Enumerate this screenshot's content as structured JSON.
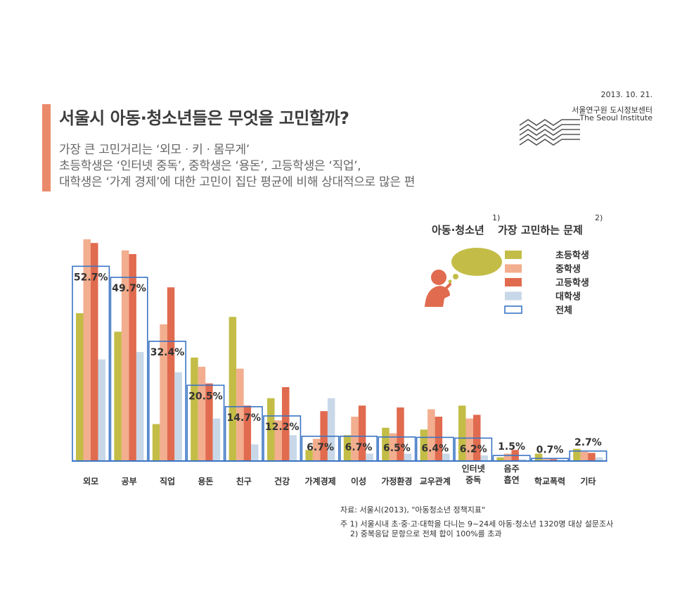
{
  "header": {
    "title": "서울시 아동·청소년들은 무엇을 고민할까?",
    "subtitle_lines": [
      "가장 큰 고민거리는 ‘외모 · 키 · 몸무게’",
      "초등학생은 ‘인터넷 중독’, 중학생은 ‘용돈’, 고등학생은 ‘직업’,",
      "대학생은 ‘가계 경제’에 대한 고민이 집단 평균에 비해 상대적으로 많은 편"
    ],
    "date": "2013. 10. 21.",
    "org": "서울연구원 도시정보센터",
    "org_en": "The Seoul Institute"
  },
  "chart_data": {
    "type": "bar",
    "title": "아동·청소년 가장 고민하는 문제",
    "title_part1": "아동·청소년",
    "title_part2": "가장 고민하는 문제",
    "note_marks": [
      "1)",
      "2)"
    ],
    "categories": [
      "외모",
      "공부",
      "직업",
      "용돈",
      "친구",
      "건강",
      "가계경제",
      "이성",
      "가정환경",
      "교우관계",
      "인터넷\n중독",
      "음주\n흡연",
      "학교폭력",
      "기타"
    ],
    "series": [
      {
        "name": "초등학생",
        "color": "#c3bd47",
        "values": [
          40.0,
          35.0,
          10.0,
          28.0,
          39.0,
          17.0,
          3.0,
          7.0,
          9.0,
          8.5,
          15.0,
          1.0,
          2.0,
          3.3
        ]
      },
      {
        "name": "중학생",
        "color": "#f2ae8e",
        "values": [
          60.0,
          57.0,
          37.0,
          25.5,
          25.0,
          11.0,
          6.0,
          12.0,
          7.5,
          14.0,
          11.5,
          2.0,
          0.5,
          2.5
        ]
      },
      {
        "name": "고등학생",
        "color": "#e16b4f",
        "values": [
          59.0,
          56.0,
          47.0,
          21.0,
          15.0,
          20.0,
          13.5,
          15.0,
          14.5,
          12.0,
          12.5,
          3.0,
          0.5,
          2.2
        ]
      },
      {
        "name": "대학생",
        "color": "#c8d8e8",
        "values": [
          27.5,
          29.5,
          24.0,
          11.5,
          4.5,
          7.0,
          17.0,
          2.0,
          2.0,
          2.0,
          1.5,
          0.5,
          0.3,
          1.0
        ]
      }
    ],
    "total": {
      "name": "전체",
      "color": "#3a74c4",
      "values": [
        52.7,
        49.7,
        32.4,
        20.5,
        14.7,
        12.2,
        6.7,
        6.7,
        6.5,
        6.4,
        6.2,
        1.5,
        0.7,
        2.7
      ]
    },
    "total_labels": [
      "52.7%",
      "49.7%",
      "32.4%",
      "20.5%",
      "14.7%",
      "12.2%",
      "6.7%",
      "6.7%",
      "6.5%",
      "6.4%",
      "6.2%",
      "1.5%",
      "0.7%",
      "2.7%"
    ],
    "ylim": [
      0,
      60
    ],
    "legend_position": "top-right"
  },
  "source": {
    "line1": "자료: 서울시(2013), \"아동청소년 정책지표\"",
    "line2": "주 1) 서울시내 초·중·고·대학을 다니는 9~24세 아동·청소년 1320명 대상 설문조사",
    "line3": "2) 중복응답 문항으로 전체 합이 100%를 초과"
  }
}
